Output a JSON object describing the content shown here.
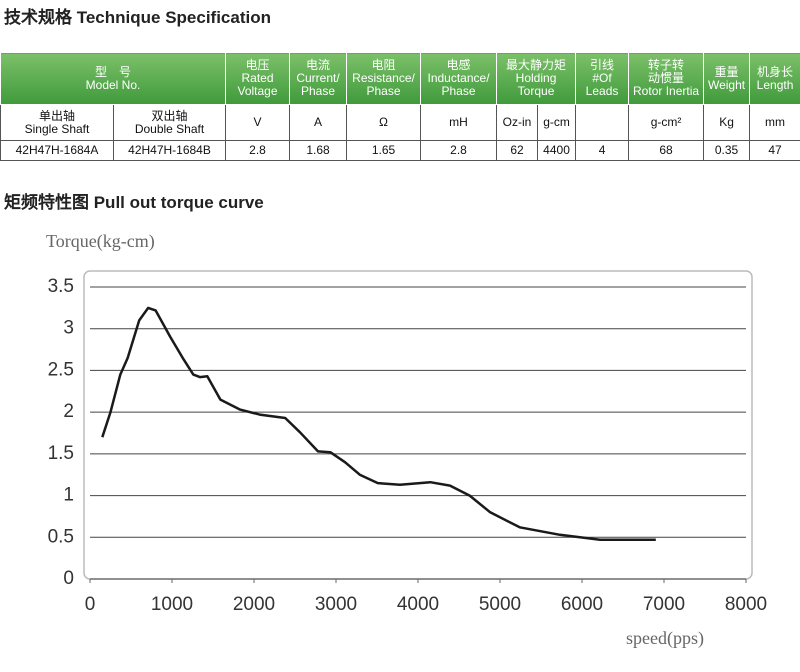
{
  "header": {
    "title": "技术规格  Technique Specification"
  },
  "table": {
    "header": [
      [
        "型　号",
        "Model No."
      ],
      [
        "电压",
        "Rated",
        "Voltage"
      ],
      [
        "电流",
        "Current/",
        "Phase"
      ],
      [
        "电阻",
        "Resistance/",
        "Phase"
      ],
      [
        "电感",
        "Inductance/",
        "Phase"
      ],
      [
        "最大静力矩",
        "Holding",
        "Torque"
      ],
      [
        "引线",
        "#Of",
        "Leads"
      ],
      [
        "转子转",
        "动惯量",
        "Rotor Inertia"
      ],
      [
        "重量",
        "Weight"
      ],
      [
        "机身长",
        "Length"
      ]
    ],
    "units": [
      [
        "单出轴",
        "Single Shaft"
      ],
      [
        "双出轴",
        "Double Shaft"
      ],
      "V",
      "A",
      "Ω",
      "mH",
      "Oz-in",
      "g-cm",
      "g-cm²",
      "Kg",
      "mm"
    ],
    "rows": [
      [
        "42H47H-1684A",
        "42H47H-1684B",
        2.8,
        1.68,
        1.65,
        2.8,
        62,
        4400,
        4,
        68,
        0.35,
        47
      ]
    ]
  },
  "chart_data": {
    "type": "line",
    "title": "矩频特性图  Pull out torque curve",
    "y_label": "Torque(kg-cm)",
    "x_label": "speed(pps)",
    "x": [
      150,
      250,
      370,
      460,
      600,
      710,
      800,
      980,
      1130,
      1260,
      1340,
      1430,
      1590,
      1830,
      2070,
      2380,
      2560,
      2780,
      2930,
      3110,
      3290,
      3510,
      3780,
      4150,
      4390,
      4630,
      4880,
      5240,
      5730,
      6220,
      6900
    ],
    "values": [
      1.7,
      2.0,
      2.45,
      2.65,
      3.1,
      3.25,
      3.22,
      2.9,
      2.65,
      2.45,
      2.42,
      2.43,
      2.15,
      2.03,
      1.97,
      1.93,
      1.76,
      1.53,
      1.52,
      1.4,
      1.25,
      1.15,
      1.13,
      1.16,
      1.12,
      1.0,
      0.8,
      0.62,
      0.53,
      0.47,
      0.47
    ],
    "color": "#1a1a1a",
    "xlim": [
      0,
      8000
    ],
    "ylim": [
      0,
      3.5
    ],
    "xticks": [
      0,
      1000,
      2000,
      3000,
      4000,
      5000,
      6000,
      7000,
      8000
    ],
    "yticks": [
      0,
      0.5,
      1,
      1.5,
      2,
      2.5,
      3,
      3.5
    ],
    "grid": true
  }
}
